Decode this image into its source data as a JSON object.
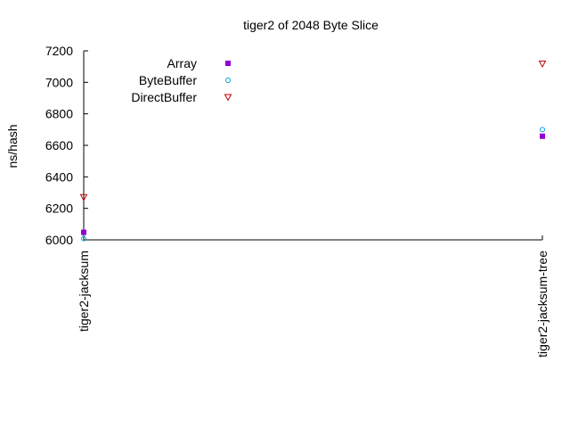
{
  "chart_data": {
    "type": "scatter",
    "title": "tiger2 of 2048 Byte Slice",
    "xlabel": "",
    "ylabel": "ns/hash",
    "categories": [
      "tiger2-jacksum",
      "tiger2-jacksum-tree"
    ],
    "ylim": [
      6000,
      7200
    ],
    "yticks": [
      6000,
      6200,
      6400,
      6600,
      6800,
      7000,
      7200
    ],
    "grid": false,
    "legend_position": "top-left",
    "series": [
      {
        "name": "Array",
        "values": [
          6048,
          6658
        ],
        "marker": "filled-square",
        "color": "#9400d3"
      },
      {
        "name": "ByteBuffer",
        "values": [
          6008,
          6700
        ],
        "marker": "open-circle",
        "color": "#009ed7"
      },
      {
        "name": "DirectBuffer",
        "values": [
          6270,
          7118
        ],
        "marker": "open-triangle-down",
        "color": "#c00000"
      }
    ]
  }
}
